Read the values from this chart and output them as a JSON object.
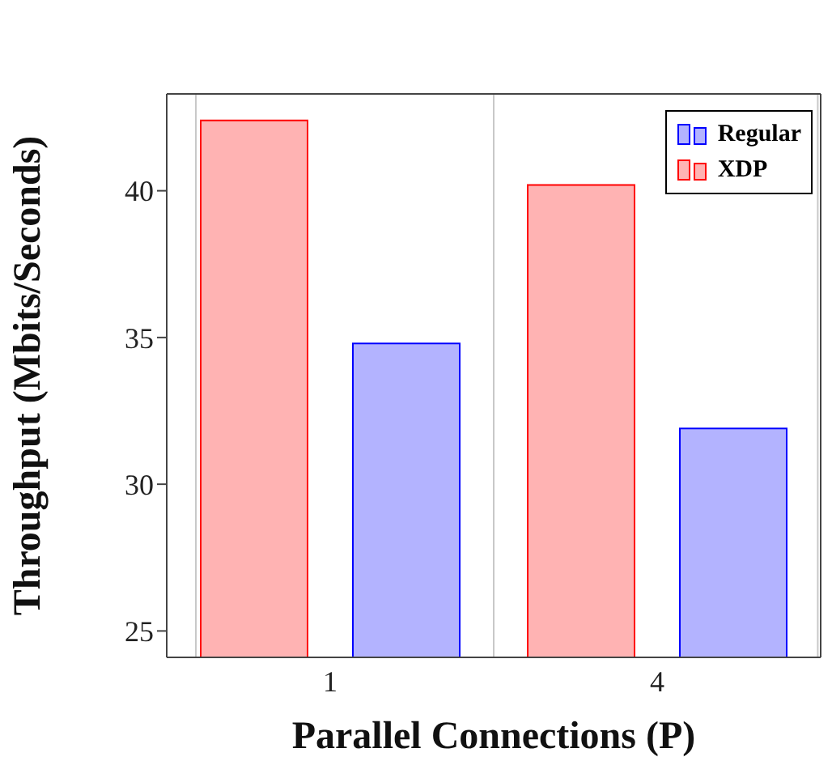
{
  "chart_data": {
    "type": "bar",
    "xlabel": "Parallel Connections (P)",
    "ylabel": "Throughput (Mbits/Seconds)",
    "categories": [
      "1",
      "4"
    ],
    "series": [
      {
        "name": "XDP",
        "color": "#ffb3b3",
        "values": [
          42.4,
          40.2
        ]
      },
      {
        "name": "Regular",
        "color": "#b3b3ff",
        "values": [
          34.8,
          31.9
        ]
      }
    ],
    "ylim": [
      24.1,
      43.3
    ],
    "yticks": [
      25,
      30,
      35,
      40
    ],
    "grid": "x",
    "legend": "top right"
  }
}
